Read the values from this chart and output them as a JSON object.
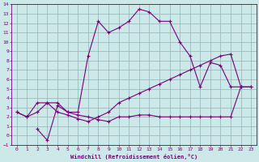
{
  "xlabel": "Windchill (Refroidissement éolien,°C)",
  "bg_color": "#cce8e8",
  "grid_color": "#99bbbb",
  "line_color": "#770077",
  "xlim": [
    -0.5,
    23.5
  ],
  "ylim": [
    -1,
    14
  ],
  "xticks": [
    0,
    1,
    2,
    3,
    4,
    5,
    6,
    7,
    8,
    9,
    10,
    11,
    12,
    13,
    14,
    15,
    16,
    17,
    18,
    19,
    20,
    21,
    22,
    23
  ],
  "yticks": [
    -1,
    0,
    1,
    2,
    3,
    4,
    5,
    6,
    7,
    8,
    9,
    10,
    11,
    12,
    13,
    14
  ],
  "line1_x": [
    0,
    1,
    2,
    3,
    4,
    5,
    6,
    7,
    8,
    9,
    10,
    11,
    12,
    13,
    14,
    15,
    16,
    17,
    18,
    19,
    20,
    21,
    22,
    23
  ],
  "line1_y": [
    2.5,
    2.0,
    2.5,
    3.5,
    3.5,
    2.5,
    2.5,
    8.5,
    12.2,
    11.0,
    11.5,
    12.2,
    13.5,
    13.2,
    12.2,
    12.2,
    10.0,
    8.5,
    5.2,
    7.8,
    7.5,
    5.2,
    5.2,
    null
  ],
  "line2_x": [
    0,
    1,
    2,
    3,
    4,
    5,
    6,
    7,
    8,
    9,
    10,
    11,
    12,
    13,
    14,
    15,
    16,
    17,
    18,
    19,
    20,
    21,
    22,
    23
  ],
  "line2_y": [
    2.5,
    2.0,
    3.5,
    3.5,
    2.5,
    2.2,
    1.8,
    1.5,
    2.0,
    2.5,
    3.5,
    4.0,
    4.5,
    5.0,
    5.5,
    6.0,
    6.5,
    7.0,
    7.5,
    8.0,
    8.5,
    8.7,
    5.2,
    5.2
  ],
  "line3_x": [
    2,
    3,
    4,
    5,
    6,
    7,
    8,
    9,
    10,
    11,
    12,
    13,
    14,
    15,
    16,
    17,
    18,
    19,
    20,
    21,
    22,
    23
  ],
  "line3_y": [
    0.7,
    -0.5,
    3.2,
    2.5,
    2.2,
    2.0,
    1.7,
    1.5,
    2.0,
    2.0,
    2.2,
    2.2,
    2.0,
    2.0,
    2.0,
    2.0,
    2.0,
    2.0,
    2.0,
    2.0,
    5.2,
    5.2
  ]
}
